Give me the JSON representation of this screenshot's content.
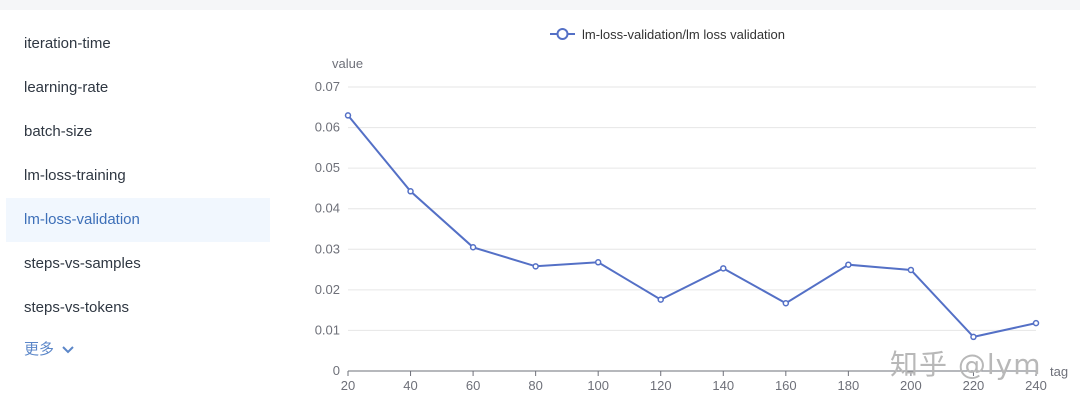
{
  "sidebar": {
    "items": [
      {
        "label": "iteration-time",
        "active": false
      },
      {
        "label": "learning-rate",
        "active": false
      },
      {
        "label": "batch-size",
        "active": false
      },
      {
        "label": "lm-loss-training",
        "active": false
      },
      {
        "label": "lm-loss-validation",
        "active": true
      },
      {
        "label": "steps-vs-samples",
        "active": false
      },
      {
        "label": "steps-vs-tokens",
        "active": false
      }
    ],
    "more_label": "更多"
  },
  "watermark": "知乎 @lym",
  "colors": {
    "series": "#5470c6",
    "active_text": "#3d6fb8",
    "grid": "#e6e6e6",
    "axis_text": "#6e7079"
  },
  "chart_data": {
    "type": "line",
    "legend": "lm-loss-validation/lm loss validation",
    "legend_position": "top-center",
    "ylabel": "value",
    "xlabel_partial": "tag",
    "yticks": [
      "0",
      "0.01",
      "0.02",
      "0.03",
      "0.04",
      "0.05",
      "0.06",
      "0.07"
    ],
    "xticks": [
      "20",
      "40",
      "60",
      "80",
      "100",
      "120",
      "140",
      "160",
      "180",
      "200",
      "220",
      "240"
    ],
    "ylim": [
      0,
      0.07
    ],
    "xlim": [
      20,
      240
    ],
    "grid": true,
    "series": [
      {
        "name": "lm-loss-validation/lm loss validation",
        "x": [
          20,
          40,
          60,
          80,
          100,
          120,
          140,
          160,
          180,
          200,
          220,
          240
        ],
        "y": [
          0.063,
          0.0443,
          0.0305,
          0.0258,
          0.0268,
          0.0176,
          0.0253,
          0.0167,
          0.0262,
          0.0249,
          0.0084,
          0.0118
        ]
      }
    ]
  }
}
